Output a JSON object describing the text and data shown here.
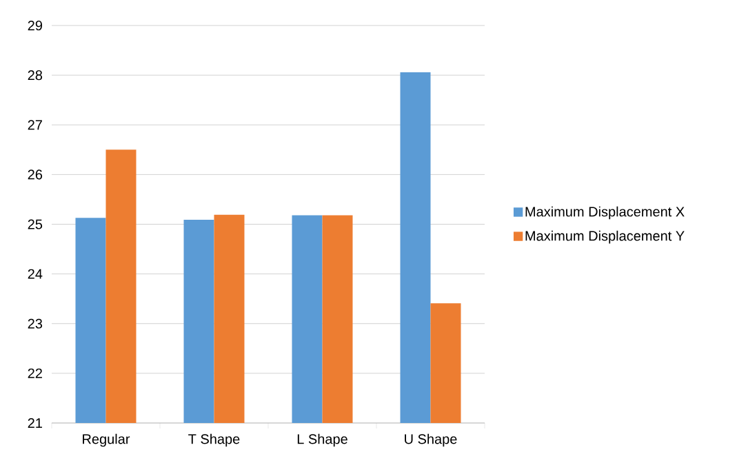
{
  "chart_data": {
    "type": "bar",
    "categories": [
      "Regular",
      "T Shape",
      "L Shape",
      "U Shape"
    ],
    "series": [
      {
        "name": "Maximum Displacement X",
        "color": "#5b9bd5",
        "values": [
          25.13,
          25.09,
          25.18,
          28.06
        ]
      },
      {
        "name": "Maximum Displacement Y",
        "color": "#ed7d31",
        "values": [
          26.5,
          25.19,
          25.18,
          23.41
        ]
      }
    ],
    "ylim": [
      21,
      29
    ],
    "yticks": [
      21,
      22,
      23,
      24,
      25,
      26,
      27,
      28,
      29
    ],
    "grid": "y",
    "legend": "right"
  }
}
